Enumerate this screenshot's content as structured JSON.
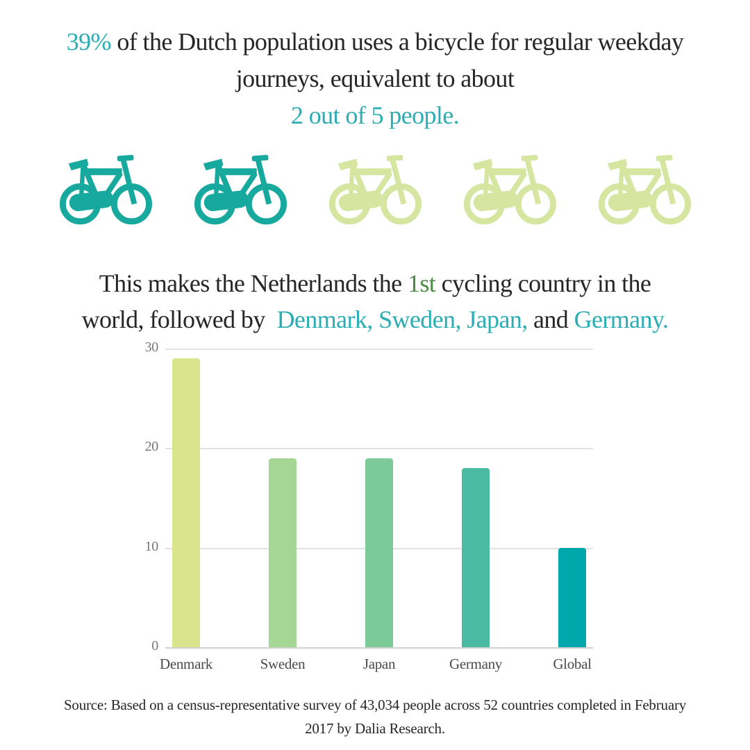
{
  "styles": {
    "teal": "#2badb3",
    "green": "#4c8b43",
    "dark": "#262626"
  },
  "headline": {
    "lines": [
      {
        "segments": [
          {
            "text": "39%",
            "style": "teal"
          },
          {
            "text": " of the Dutch population uses a bicycle for regular weekday",
            "style": "dark"
          }
        ]
      },
      {
        "segments": [
          {
            "text": "journeys, equivalent to about",
            "style": "dark"
          }
        ]
      },
      {
        "segments": [
          {
            "text": "2 out of 5 people.",
            "style": "teal"
          }
        ]
      }
    ]
  },
  "bikes": {
    "count": 5,
    "active_count": 2,
    "active_color": "#17a89e",
    "inactive_color": "#d6e5a0"
  },
  "statement": {
    "lines": [
      {
        "segments": [
          {
            "text": "This makes the Netherlands the ",
            "style": "dark"
          },
          {
            "text": "1st",
            "style": "green"
          },
          {
            "text": " cycling country in the",
            "style": "dark"
          }
        ]
      },
      {
        "segments": [
          {
            "text": "world, followed by  ",
            "style": "dark"
          },
          {
            "text": "Denmark, Sweden, Japan,",
            "style": "teal"
          },
          {
            "text": " and ",
            "style": "dark"
          },
          {
            "text": "Germany.",
            "style": "teal"
          }
        ]
      }
    ]
  },
  "chart_data": {
    "type": "bar",
    "categories": [
      "Denmark",
      "Sweden",
      "Japan",
      "Germany",
      "Global"
    ],
    "values": [
      29,
      19,
      19,
      18,
      10
    ],
    "bar_colors": [
      "#d8e58d",
      "#a3d793",
      "#7bca98",
      "#4bbaa3",
      "#00a8ac"
    ],
    "title": "",
    "xlabel": "",
    "ylabel": "",
    "ylim": [
      0,
      30
    ],
    "yticks": [
      30,
      20,
      10,
      0
    ],
    "grid": true,
    "legend": false
  },
  "source": {
    "lines": [
      "Source: Based on a census-representative survey of 43,034 people across 52 countries completed in February",
      "2017 by Dalia Research."
    ]
  }
}
